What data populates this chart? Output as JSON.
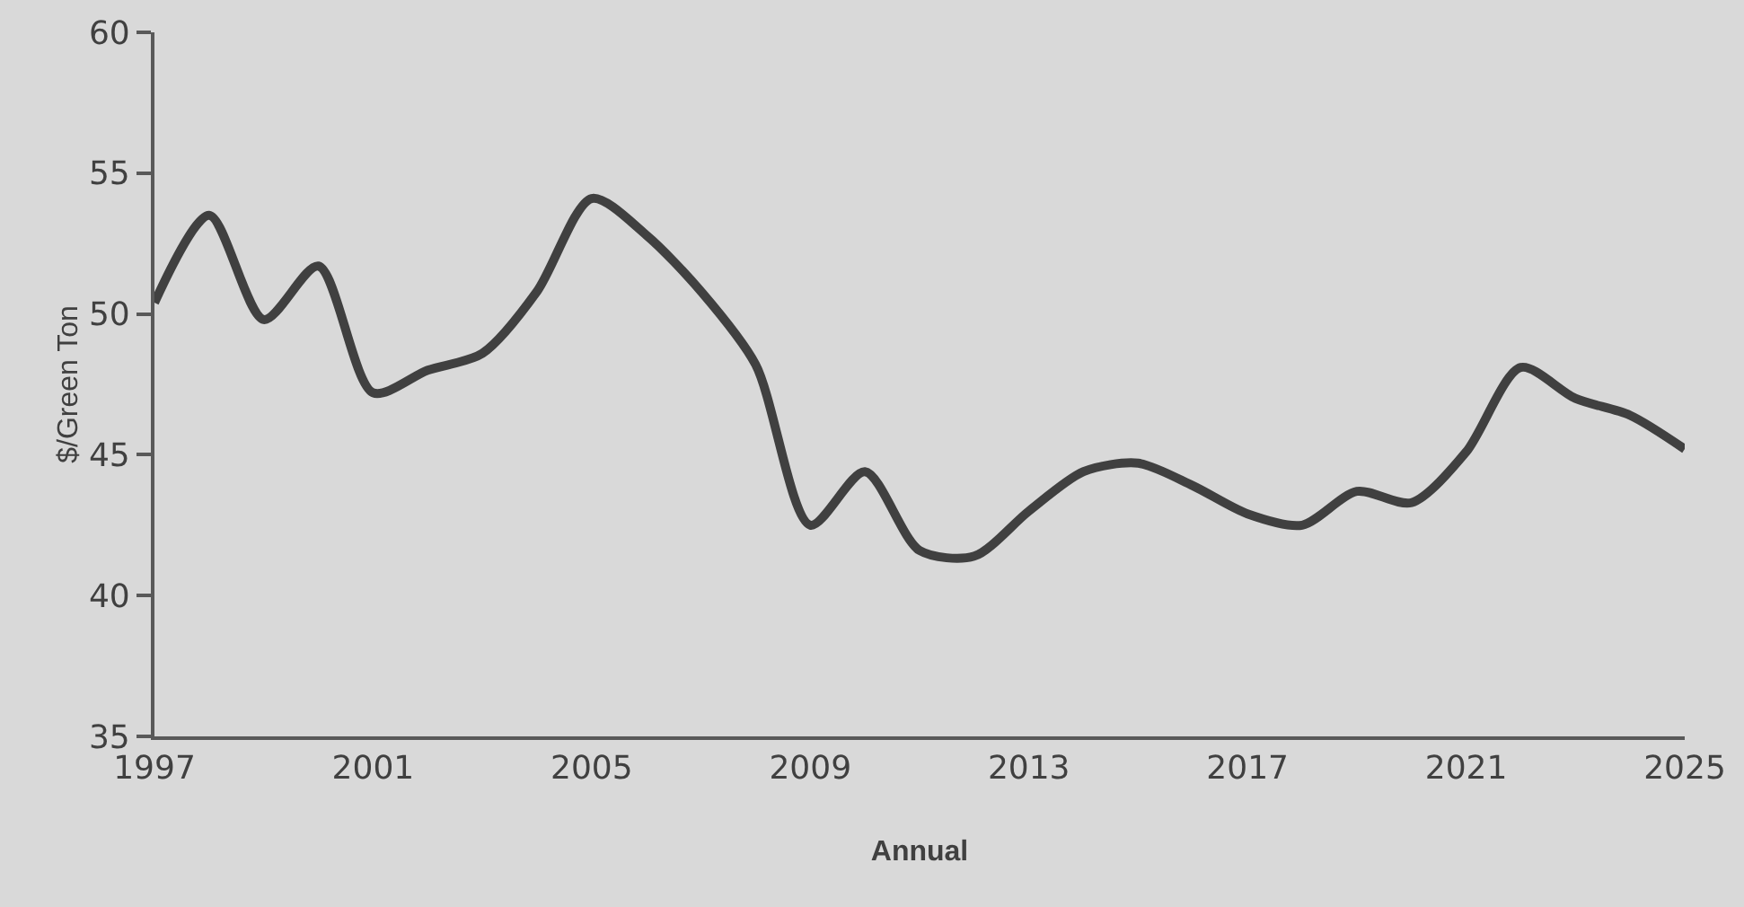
{
  "chart_data": {
    "type": "line",
    "xlabel": "Annual",
    "ylabel": "$/Green Ton",
    "x": [
      1997,
      1998,
      1999,
      2000,
      2001,
      2002,
      2003,
      2004,
      2005,
      2006,
      2007,
      2008,
      2009,
      2010,
      2011,
      2012,
      2013,
      2014,
      2015,
      2016,
      2017,
      2018,
      2019,
      2020,
      2021,
      2022,
      2023,
      2024,
      2025
    ],
    "series": [
      {
        "color": "#404040",
        "values": [
          50.4,
          53.5,
          49.8,
          51.7,
          47.2,
          48.0,
          48.6,
          50.8,
          54.1,
          52.8,
          50.8,
          48.2,
          42.5,
          44.4,
          41.6,
          41.4,
          43.0,
          44.4,
          44.7,
          43.9,
          42.9,
          42.5,
          43.7,
          43.3,
          45.1,
          48.1,
          47.0,
          46.4,
          45.2
        ]
      }
    ],
    "xlim": [
      1997,
      2025
    ],
    "xticks": [
      1997,
      2001,
      2005,
      2009,
      2013,
      2017,
      2021,
      2025
    ],
    "ylim": [
      35,
      60
    ],
    "yticks": [
      35,
      40,
      45,
      50,
      55,
      60
    ],
    "grid": false,
    "marker": "none",
    "line_style": "solid"
  }
}
